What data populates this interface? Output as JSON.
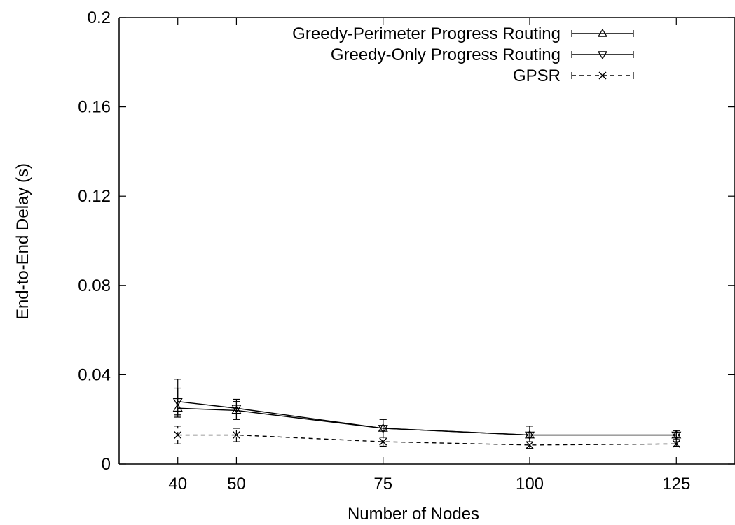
{
  "chart_data": {
    "type": "line",
    "xlabel": "Number of Nodes",
    "ylabel": "End-to-End Delay (s)",
    "xlim": [
      30,
      135
    ],
    "ylim": [
      0,
      0.2
    ],
    "x_ticks": [
      40,
      50,
      75,
      100,
      125
    ],
    "x_tick_labels": [
      "40",
      "50",
      "75",
      "100",
      "125"
    ],
    "y_ticks": [
      0,
      0.04,
      0.08,
      0.12,
      0.16,
      0.2
    ],
    "y_tick_labels": [
      "0",
      "0.04",
      "0.08",
      "0.12",
      "0.16",
      "0.2"
    ],
    "grid": false,
    "legend_position": "top-right",
    "series": [
      {
        "name": "Greedy-Perimeter Progress Routing",
        "marker": "triangle-up",
        "line_style": "solid",
        "x": [
          40,
          50,
          75,
          100,
          125
        ],
        "y": [
          0.025,
          0.024,
          0.016,
          0.013,
          0.013
        ],
        "error_low": [
          0.021,
          0.02,
          0.012,
          0.01,
          0.011
        ],
        "error_high": [
          0.034,
          0.028,
          0.02,
          0.017,
          0.015
        ]
      },
      {
        "name": "Greedy-Only Progress Routing",
        "marker": "triangle-down",
        "line_style": "solid",
        "x": [
          40,
          50,
          75,
          100,
          125
        ],
        "y": [
          0.028,
          0.025,
          0.016,
          0.013,
          0.013
        ],
        "error_low": [
          0.022,
          0.02,
          0.012,
          0.01,
          0.01
        ],
        "error_high": [
          0.038,
          0.029,
          0.02,
          0.017,
          0.015
        ]
      },
      {
        "name": "GPSR",
        "marker": "x",
        "line_style": "dashed",
        "x": [
          40,
          50,
          75,
          100,
          125
        ],
        "y": [
          0.013,
          0.013,
          0.01,
          0.0085,
          0.009
        ],
        "error_low": [
          0.009,
          0.01,
          0.008,
          0.007,
          0.008
        ],
        "error_high": [
          0.017,
          0.016,
          0.012,
          0.01,
          0.01
        ]
      }
    ]
  }
}
